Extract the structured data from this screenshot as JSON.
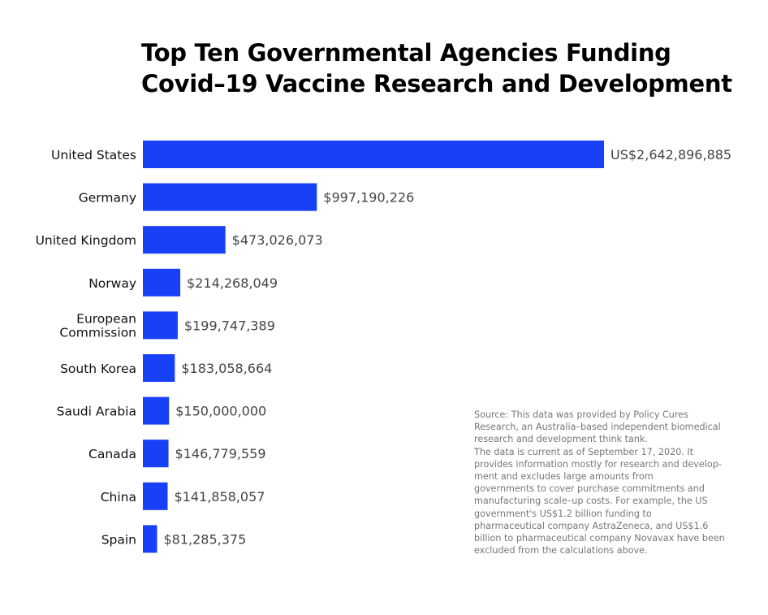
{
  "chart_data": {
    "type": "bar",
    "orientation": "horizontal",
    "title_lines": [
      "Top Ten Governmental Agencies Funding",
      "Covid–19 Vaccine Research and Development"
    ],
    "categories": [
      "United States",
      "Germany",
      "United Kingdom",
      "Norway",
      "European Commission",
      "South Korea",
      "Saudi Arabia",
      "Canada",
      "China",
      "Spain"
    ],
    "values": [
      2642896885,
      997190226,
      473026073,
      214268049,
      199747389,
      183058664,
      150000000,
      146779559,
      141858057,
      81285375
    ],
    "data_labels": [
      "US$2,642,896,885",
      "$997,190,226",
      "$473,026,073",
      "$214,268,049",
      "$199,747,389",
      "$183,058,664",
      "$150,000,000",
      "$146,779,559",
      "$141,858,057",
      "$81,285,375"
    ],
    "xlabel": "",
    "ylabel": "",
    "grid": false,
    "legend": "none",
    "bar_color": "#1740f7",
    "label_color": "#444444"
  },
  "note_lines": [
    "Source: This data was provided by Policy Cures",
    "Research, an Australia–based independent biomedical",
    "research and development think tank.",
    "The data is current as of September 17, 2020. It",
    "provides information mostly for research and develop-",
    "ment and excludes large amounts from",
    "governments to cover purchase commitments and",
    "manufacturing scale–up costs. For example, the US",
    "government's US$1.2 billion funding to",
    "pharmaceutical company AstraZeneca, and US$1.6",
    "billion to pharmaceutical company Novavax have been",
    "excluded from the calculations above."
  ]
}
